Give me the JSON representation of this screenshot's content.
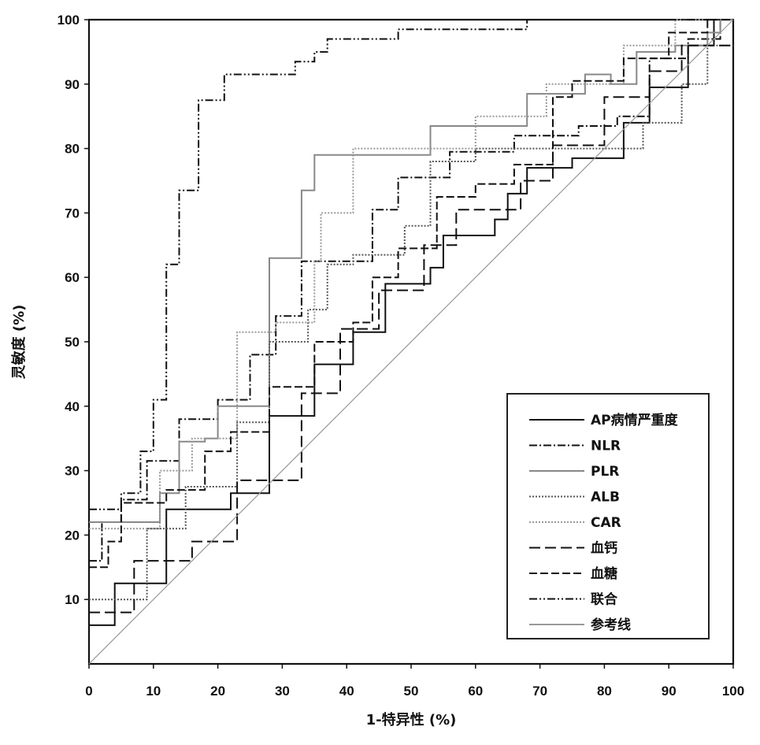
{
  "chart_data": {
    "type": "line",
    "xlabel": "1-特异性 (%)",
    "ylabel": "灵敏度 (%)",
    "xlim": [
      0,
      100
    ],
    "ylim": [
      0,
      100
    ],
    "x_ticks": [
      0,
      10,
      20,
      30,
      40,
      50,
      60,
      70,
      80,
      90,
      100
    ],
    "y_ticks": [
      10,
      20,
      30,
      40,
      50,
      60,
      70,
      80,
      90,
      100
    ],
    "grid": false,
    "legend_position": "bottom-right",
    "series": [
      {
        "name": "AP病情严重度",
        "color": "#111111",
        "dash": "",
        "points": [
          [
            0,
            6
          ],
          [
            4,
            6
          ],
          [
            4,
            12.5
          ],
          [
            12,
            12.5
          ],
          [
            12,
            24
          ],
          [
            22,
            24
          ],
          [
            22,
            26.5
          ],
          [
            28,
            26.5
          ],
          [
            28,
            38.5
          ],
          [
            35,
            38.5
          ],
          [
            35,
            46.5
          ],
          [
            41,
            46.5
          ],
          [
            41,
            51.5
          ],
          [
            46,
            51.5
          ],
          [
            46,
            59
          ],
          [
            53,
            59
          ],
          [
            53,
            61.5
          ],
          [
            55,
            61.5
          ],
          [
            55,
            66.5
          ],
          [
            63,
            66.5
          ],
          [
            63,
            69
          ],
          [
            65,
            69
          ],
          [
            65,
            73
          ],
          [
            68,
            73
          ],
          [
            68,
            77
          ],
          [
            75,
            77
          ],
          [
            75,
            78.5
          ],
          [
            83,
            78.5
          ],
          [
            83,
            84
          ],
          [
            87,
            84
          ],
          [
            87,
            89.5
          ],
          [
            93,
            89.5
          ],
          [
            93,
            96
          ],
          [
            97,
            96
          ],
          [
            97,
            100
          ],
          [
            100,
            100
          ]
        ]
      },
      {
        "name": "NLR",
        "color": "#111111",
        "dash": "10 3 2 3",
        "points": [
          [
            0,
            16
          ],
          [
            2,
            16
          ],
          [
            2,
            22
          ],
          [
            5,
            22
          ],
          [
            5,
            25.5
          ],
          [
            9,
            25.5
          ],
          [
            9,
            31.5
          ],
          [
            14,
            31.5
          ],
          [
            14,
            38
          ],
          [
            20,
            38
          ],
          [
            20,
            41
          ],
          [
            25,
            41
          ],
          [
            25,
            48
          ],
          [
            29,
            48
          ],
          [
            29,
            54
          ],
          [
            33,
            54
          ],
          [
            33,
            62.5
          ],
          [
            41,
            62.5
          ],
          [
            41,
            62.5
          ],
          [
            44,
            62.5
          ],
          [
            44,
            70.5
          ],
          [
            48,
            70.5
          ],
          [
            48,
            75.5
          ],
          [
            56,
            75.5
          ],
          [
            56,
            79.5
          ],
          [
            66,
            79.5
          ],
          [
            66,
            82
          ],
          [
            76,
            82
          ],
          [
            76,
            83.5
          ],
          [
            82,
            83.5
          ],
          [
            82,
            85
          ],
          [
            87,
            85
          ],
          [
            87,
            94
          ],
          [
            93,
            94
          ],
          [
            93,
            97
          ],
          [
            98,
            97
          ],
          [
            98,
            100
          ],
          [
            100,
            100
          ]
        ]
      },
      {
        "name": "PLR",
        "color": "#888888",
        "dash": "",
        "points": [
          [
            0,
            22
          ],
          [
            11,
            22
          ],
          [
            11,
            26.5
          ],
          [
            14,
            26.5
          ],
          [
            14,
            34.5
          ],
          [
            18,
            34.5
          ],
          [
            18,
            35
          ],
          [
            20,
            35
          ],
          [
            20,
            40
          ],
          [
            28,
            40
          ],
          [
            28,
            63
          ],
          [
            33,
            63
          ],
          [
            33,
            73.5
          ],
          [
            35,
            73.5
          ],
          [
            35,
            79
          ],
          [
            53,
            79
          ],
          [
            53,
            83.5
          ],
          [
            68,
            83.5
          ],
          [
            68,
            88.5
          ],
          [
            77,
            88.5
          ],
          [
            77,
            91.5
          ],
          [
            81,
            91.5
          ],
          [
            81,
            90
          ],
          [
            85,
            90
          ],
          [
            85,
            95
          ],
          [
            91,
            95
          ],
          [
            91,
            96
          ],
          [
            96,
            96
          ],
          [
            96,
            98
          ],
          [
            98,
            98
          ],
          [
            98,
            100
          ],
          [
            100,
            100
          ]
        ]
      },
      {
        "name": "ALB",
        "color": "#555555",
        "dash": "2 2",
        "points": [
          [
            0,
            10
          ],
          [
            9,
            10
          ],
          [
            9,
            21
          ],
          [
            15,
            21
          ],
          [
            15,
            27.5
          ],
          [
            23,
            27.5
          ],
          [
            23,
            37.5
          ],
          [
            28,
            37.5
          ],
          [
            28,
            50
          ],
          [
            34,
            50
          ],
          [
            34,
            55
          ],
          [
            37,
            55
          ],
          [
            37,
            62
          ],
          [
            41,
            62
          ],
          [
            41,
            63.5
          ],
          [
            49,
            63.5
          ],
          [
            49,
            68
          ],
          [
            53,
            68
          ],
          [
            53,
            78
          ],
          [
            60,
            78
          ],
          [
            60,
            80
          ],
          [
            74,
            80
          ],
          [
            74,
            80
          ],
          [
            86,
            80
          ],
          [
            86,
            84
          ],
          [
            92,
            84
          ],
          [
            92,
            90
          ],
          [
            96,
            90
          ],
          [
            96,
            96
          ],
          [
            100,
            96
          ]
        ]
      },
      {
        "name": "CAR",
        "color": "#999999",
        "dash": "2 2",
        "points": [
          [
            0,
            21
          ],
          [
            11,
            21
          ],
          [
            11,
            30
          ],
          [
            16,
            30
          ],
          [
            16,
            35
          ],
          [
            23,
            35
          ],
          [
            23,
            51.5
          ],
          [
            29,
            51.5
          ],
          [
            29,
            53
          ],
          [
            35,
            53
          ],
          [
            35,
            62.5
          ],
          [
            36,
            62.5
          ],
          [
            36,
            70
          ],
          [
            41,
            70
          ],
          [
            41,
            80
          ],
          [
            55,
            80
          ],
          [
            55,
            80
          ],
          [
            60,
            80
          ],
          [
            60,
            85
          ],
          [
            71,
            85
          ],
          [
            71,
            90
          ],
          [
            83,
            90
          ],
          [
            83,
            96
          ],
          [
            91,
            96
          ],
          [
            91,
            100
          ],
          [
            100,
            100
          ]
        ]
      },
      {
        "name": "血钙",
        "color": "#111111",
        "dash": "14 6",
        "points": [
          [
            0,
            8
          ],
          [
            7,
            8
          ],
          [
            7,
            16
          ],
          [
            16,
            16
          ],
          [
            16,
            19
          ],
          [
            23,
            19
          ],
          [
            23,
            28.5
          ],
          [
            33,
            28.5
          ],
          [
            33,
            42
          ],
          [
            39,
            42
          ],
          [
            39,
            52
          ],
          [
            45,
            52
          ],
          [
            45,
            58
          ],
          [
            52,
            58
          ],
          [
            52,
            65
          ],
          [
            57,
            65
          ],
          [
            57,
            70.5
          ],
          [
            67,
            70.5
          ],
          [
            67,
            75
          ],
          [
            72,
            75
          ],
          [
            72,
            80.5
          ],
          [
            80,
            80.5
          ],
          [
            80,
            88
          ],
          [
            87,
            88
          ],
          [
            87,
            92
          ],
          [
            92,
            92
          ],
          [
            92,
            96
          ],
          [
            100,
            96
          ]
        ]
      },
      {
        "name": "血糖",
        "color": "#111111",
        "dash": "10 4",
        "points": [
          [
            0,
            15
          ],
          [
            3,
            15
          ],
          [
            3,
            19
          ],
          [
            5,
            19
          ],
          [
            5,
            25
          ],
          [
            12,
            25
          ],
          [
            12,
            27
          ],
          [
            18,
            27
          ],
          [
            18,
            33
          ],
          [
            22,
            33
          ],
          [
            22,
            36
          ],
          [
            28,
            36
          ],
          [
            28,
            43
          ],
          [
            35,
            43
          ],
          [
            35,
            50
          ],
          [
            41,
            50
          ],
          [
            41,
            53
          ],
          [
            44,
            53
          ],
          [
            44,
            60
          ],
          [
            48,
            60
          ],
          [
            48,
            64.5
          ],
          [
            54,
            64.5
          ],
          [
            54,
            72.5
          ],
          [
            60,
            72.5
          ],
          [
            60,
            74.5
          ],
          [
            66,
            74.5
          ],
          [
            66,
            77.5
          ],
          [
            72,
            77.5
          ],
          [
            72,
            88
          ],
          [
            75,
            88
          ],
          [
            75,
            90.5
          ],
          [
            83,
            90.5
          ],
          [
            83,
            94
          ],
          [
            90,
            94
          ],
          [
            90,
            98
          ],
          [
            96,
            98
          ],
          [
            96,
            100
          ],
          [
            100,
            100
          ]
        ]
      },
      {
        "name": "联合",
        "color": "#111111",
        "dash": "10 3 2 3 2 3",
        "points": [
          [
            0,
            24
          ],
          [
            5,
            24
          ],
          [
            5,
            26.5
          ],
          [
            8,
            26.5
          ],
          [
            8,
            33
          ],
          [
            10,
            33
          ],
          [
            10,
            41
          ],
          [
            12,
            41
          ],
          [
            12,
            62
          ],
          [
            14,
            62
          ],
          [
            14,
            73.5
          ],
          [
            17,
            73.5
          ],
          [
            17,
            87.5
          ],
          [
            21,
            87.5
          ],
          [
            21,
            91.5
          ],
          [
            32,
            91.5
          ],
          [
            32,
            93.5
          ],
          [
            35,
            93.5
          ],
          [
            35,
            95
          ],
          [
            37,
            95
          ],
          [
            37,
            97
          ],
          [
            48,
            97
          ],
          [
            48,
            98.5
          ],
          [
            68,
            98.5
          ],
          [
            68,
            100
          ],
          [
            100,
            100
          ]
        ]
      },
      {
        "name": "参考线",
        "color": "#999999",
        "dash": "",
        "points": [
          [
            0,
            0
          ],
          [
            100,
            100
          ]
        ]
      }
    ]
  }
}
